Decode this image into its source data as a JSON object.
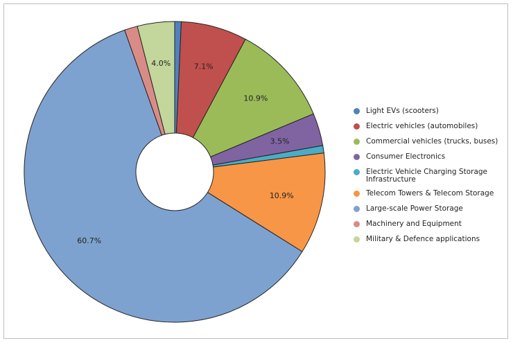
{
  "chart_data": {
    "type": "pie",
    "donut": true,
    "start_angle_deg": 0,
    "direction": "clockwise",
    "legend_position": "right",
    "slices": [
      {
        "name": "Light EVs (scooters)",
        "value": 0.7,
        "color": "#4f81bd",
        "label": ""
      },
      {
        "name": "Electric vehicles (automobiles)",
        "value": 7.1,
        "color": "#c0504d",
        "label": "7.1%"
      },
      {
        "name": "Commercial vehicles (trucks, buses)",
        "value": 10.9,
        "color": "#9bbb59",
        "label": "10.9%"
      },
      {
        "name": "Consumer Electronics",
        "value": 3.5,
        "color": "#8064a2",
        "label": "3.5%"
      },
      {
        "name": "Electric Vehicle Charging Storage Infrastructure",
        "value": 0.8,
        "color": "#4bacc6",
        "label": ""
      },
      {
        "name": "Telecom Towers & Telecom Storage",
        "value": 10.9,
        "color": "#f79646",
        "label": "10.9%"
      },
      {
        "name": "Large-scale Power Storage",
        "value": 60.7,
        "color": "#7ea2cf",
        "label": "60.7%"
      },
      {
        "name": "Machinery and Equipment",
        "value": 1.4,
        "color": "#d98c86",
        "label": ""
      },
      {
        "name": "Military & Defence applications",
        "value": 4.0,
        "color": "#c3d69b",
        "label": "4.0%"
      }
    ]
  }
}
